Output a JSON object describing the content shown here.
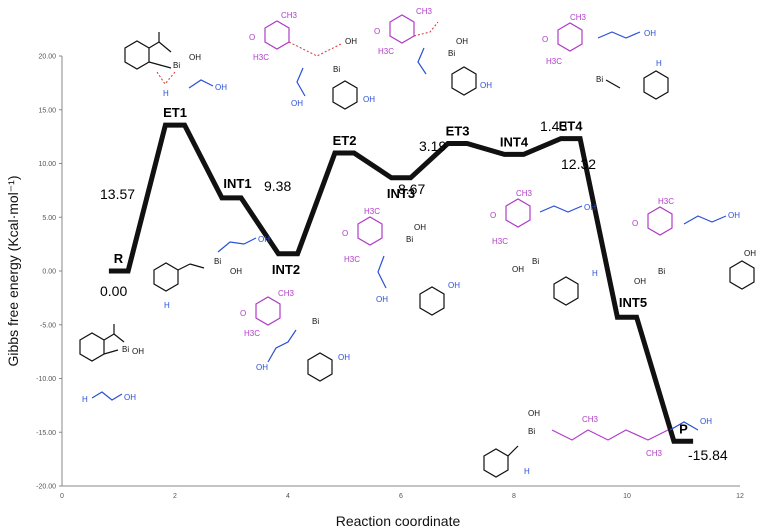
{
  "chart_data": {
    "type": "line",
    "title": "",
    "xlabel": "Reaction coordinate",
    "ylabel": "Gibbs free energy (Kcal·mol⁻¹)",
    "xlim": [
      0,
      12
    ],
    "ylim": [
      -20,
      20
    ],
    "x_ticks": [
      0,
      2,
      4,
      6,
      8,
      10,
      12
    ],
    "y_ticks": [
      "20.00",
      "15.00",
      "10.00",
      "5.00",
      "0.00",
      "-5.00",
      "-10.00",
      "-15.00",
      "-20.00"
    ],
    "y_tick_values": [
      20,
      15,
      10,
      5,
      0,
      -5,
      -10,
      -15,
      -20
    ],
    "grid": false,
    "series": [
      {
        "values": [
          0.0,
          13.57,
          6.8,
          1.6,
          10.98,
          8.67,
          11.86,
          10.85,
          12.32,
          -4.3,
          -15.84
        ]
      }
    ],
    "states": [
      {
        "label": "R",
        "x": 1.0,
        "y": 0.0
      },
      {
        "label": "ET1",
        "x": 2.0,
        "y": 13.57
      },
      {
        "label": "INT1",
        "x": 3.0,
        "y": 6.8
      },
      {
        "label": "INT2",
        "x": 4.0,
        "y": 1.6
      },
      {
        "label": "ET2",
        "x": 5.0,
        "y": 10.98
      },
      {
        "label": "INT3",
        "x": 6.0,
        "y": 8.67
      },
      {
        "label": "ET3",
        "x": 7.0,
        "y": 11.86
      },
      {
        "label": "INT4",
        "x": 8.0,
        "y": 10.85
      },
      {
        "label": "ET4",
        "x": 9.0,
        "y": 12.32
      },
      {
        "label": "INT5",
        "x": 10.0,
        "y": -4.3
      },
      {
        "label": "P",
        "x": 11.0,
        "y": -15.84
      }
    ],
    "energy_labels": [
      "0.00",
      "13.57",
      "9.38",
      "8.67",
      "3.19",
      "1.43",
      "12.32",
      "-15.84"
    ],
    "line_color": "#111111"
  },
  "molecules": {
    "element_labels": [
      "O",
      "OH",
      "Bi",
      "H",
      "H3C",
      "CH3"
    ]
  }
}
